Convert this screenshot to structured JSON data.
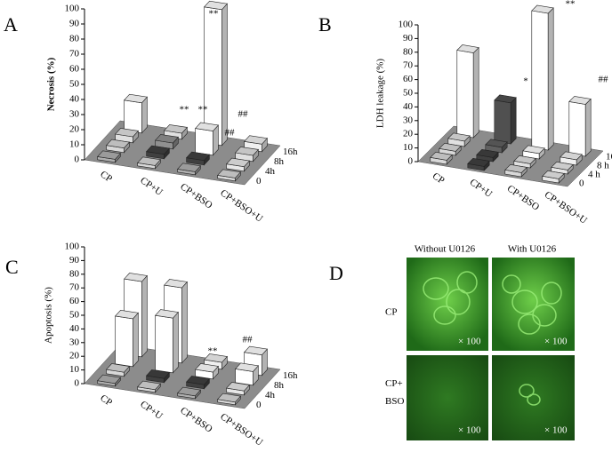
{
  "chart_data": [
    {
      "type": "bar3d",
      "panel": "A",
      "ylabel": "Necrosis (%)",
      "categories": [
        "CP",
        "CP+U",
        "CP+BSO",
        "CP+BSO+U"
      ],
      "ylim": [
        0,
        100
      ],
      "yticks": [
        0,
        10,
        20,
        30,
        40,
        50,
        60,
        70,
        80,
        90,
        100
      ],
      "floor_color": "#8c8c8c",
      "series": [
        {
          "name": "0",
          "values": [
            2,
            2,
            2,
            2
          ],
          "colors": [
            "#b0b0b0",
            "#d8d8d8",
            "#b0b0b0",
            "#d8d8d8"
          ]
        },
        {
          "name": "4h",
          "values": [
            3,
            3,
            3,
            3
          ],
          "colors": [
            "#d8d8d8",
            "#404040",
            "#404040",
            "#e8e8e8"
          ]
        },
        {
          "name": "8h",
          "values": [
            4,
            4,
            16,
            4
          ],
          "colors": [
            "#e0e0e0",
            "#909090",
            "#ffffff",
            "#e0e0e0"
          ]
        },
        {
          "name": "16h",
          "values": [
            20,
            4,
            90,
            5
          ],
          "colors": [
            "#ffffff",
            "#e0e0e0",
            "#ffffff",
            "#f0f0f0"
          ]
        }
      ],
      "annotations": [
        "**",
        "**",
        "**",
        "##",
        "##"
      ]
    },
    {
      "type": "bar3d",
      "panel": "B",
      "ylabel": "LDH leakage (%)",
      "categories": [
        "CP",
        "CP+U",
        "CP+BSO",
        "CP+BSO+U"
      ],
      "ylim": [
        0,
        100
      ],
      "yticks": [
        0,
        10,
        20,
        30,
        40,
        50,
        60,
        70,
        80,
        90,
        100
      ],
      "floor_color": "#8c8c8c",
      "series": [
        {
          "name": "0",
          "values": [
            3,
            3,
            3,
            3
          ],
          "colors": [
            "#d8d8d8",
            "#404040",
            "#d8d8d8",
            "#e8e8e8"
          ]
        },
        {
          "name": "4 h",
          "values": [
            3,
            3,
            3,
            3
          ],
          "colors": [
            "#d8d8d8",
            "#404040",
            "#e0e0e0",
            "#e8e8e8"
          ]
        },
        {
          "name": "8 h",
          "values": [
            4,
            4,
            4,
            4
          ],
          "colors": [
            "#e0e0e0",
            "#606060",
            "#ffffff",
            "#f0f0f0"
          ]
        },
        {
          "name": "16 h",
          "values": [
            62,
            30,
            100,
            38
          ],
          "colors": [
            "#ffffff",
            "#505050",
            "#ffffff",
            "#ffffff"
          ]
        }
      ],
      "annotations": [
        "*",
        "**",
        "##"
      ]
    },
    {
      "type": "bar3d",
      "panel": "C",
      "ylabel": "Apoptosis (%)",
      "categories": [
        "CP",
        "CP+U",
        "CP+BSO",
        "CP+BSO+U"
      ],
      "ylim": [
        0,
        100
      ],
      "yticks": [
        0,
        10,
        20,
        30,
        40,
        50,
        60,
        70,
        80,
        90,
        100
      ],
      "floor_color": "#8c8c8c",
      "series": [
        {
          "name": "0",
          "values": [
            2,
            2,
            2,
            2
          ],
          "colors": [
            "#b0b0b0",
            "#d8d8d8",
            "#b0b0b0",
            "#d8d8d8"
          ]
        },
        {
          "name": "4h",
          "values": [
            3,
            3,
            3,
            3
          ],
          "colors": [
            "#d8d8d8",
            "#404040",
            "#404040",
            "#e8e8e8"
          ]
        },
        {
          "name": "8h",
          "values": [
            35,
            40,
            5,
            10
          ],
          "colors": [
            "#ffffff",
            "#ffffff",
            "#ffffff",
            "#ffffff"
          ]
        },
        {
          "name": "16h",
          "values": [
            55,
            55,
            5,
            15
          ],
          "colors": [
            "#ffffff",
            "#ffffff",
            "#f0f0f0",
            "#ffffff"
          ]
        }
      ],
      "annotations": [
        "**",
        "##"
      ]
    }
  ],
  "images": {
    "panel": "D",
    "columns": [
      "Without U0126",
      "With U0126"
    ],
    "rows": [
      "CP",
      "CP+\nBSO"
    ],
    "magnifications": [
      "× 100",
      "× 100",
      "× 100",
      "× 100"
    ]
  }
}
